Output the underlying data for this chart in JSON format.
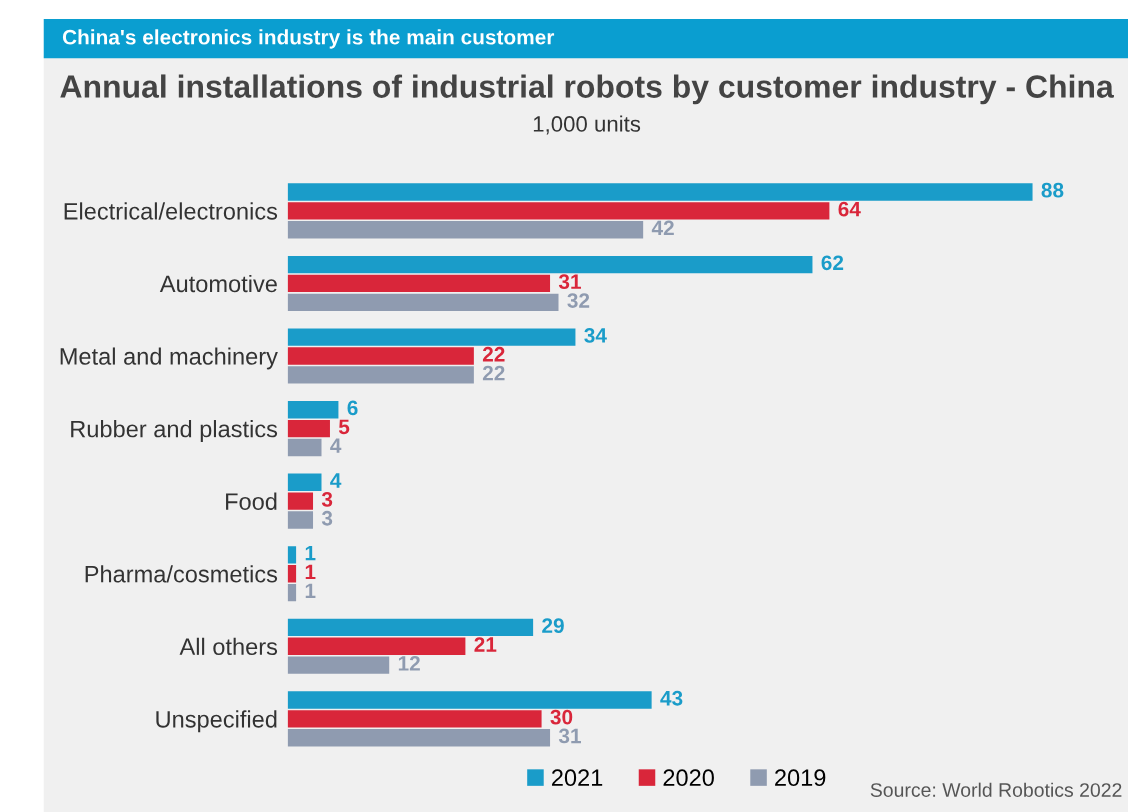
{
  "chart_data": {
    "type": "bar",
    "orientation": "horizontal",
    "title": "Annual installations of industrial robots by customer industry - China",
    "subtitle": "1,000 units",
    "annotations": [
      "China's electronics industry is the main customer",
      "Source: World Robotics 2022"
    ],
    "categories": [
      "Electrical/electronics",
      "Automotive",
      "Metal and machinery",
      "Rubber and plastics",
      "Food",
      "Pharma/cosmetics",
      "All others",
      "Unspecified"
    ],
    "series": [
      {
        "name": "2021",
        "color": "#1a9cc9",
        "values": [
          88,
          62,
          34,
          6,
          4,
          1,
          29,
          43
        ]
      },
      {
        "name": "2020",
        "color": "#d9263a",
        "values": [
          64,
          31,
          22,
          5,
          3,
          1,
          21,
          30
        ]
      },
      {
        "name": "2019",
        "color": "#8f9bb0",
        "values": [
          42,
          32,
          22,
          4,
          3,
          1,
          12,
          31
        ]
      }
    ],
    "data_labels": true,
    "legend": "bottom",
    "grid": false
  }
}
